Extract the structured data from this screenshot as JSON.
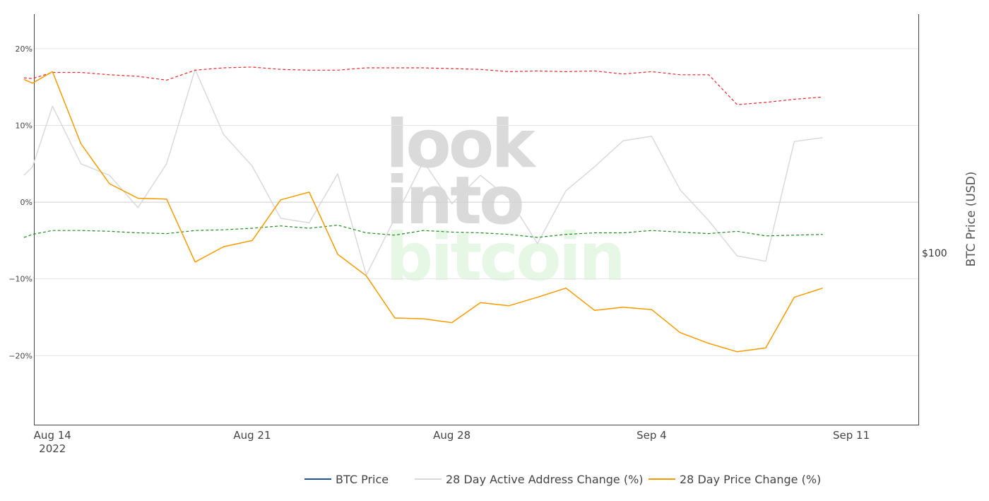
{
  "chart_data": {
    "type": "line",
    "watermark": [
      "look",
      "into",
      "bitcoin"
    ],
    "yaxis_right": {
      "title": "BTC Price (USD)",
      "tick_label": "$100"
    },
    "x_ticks": [
      {
        "label": "Aug 14",
        "sublabel": "2022",
        "day": 0
      },
      {
        "label": "Aug 21",
        "sublabel": "",
        "day": 7
      },
      {
        "label": "Aug 28",
        "sublabel": "",
        "day": 14
      },
      {
        "label": "Sep 4",
        "sublabel": "",
        "day": 21
      },
      {
        "label": "Sep 11",
        "sublabel": "",
        "day": 28
      }
    ],
    "x_range": [
      "2022-08-13",
      "2022-09-13"
    ],
    "ylim": [
      -29,
      24.5
    ],
    "y_ticks": [
      {
        "value": 20,
        "label": "20%"
      },
      {
        "value": 10,
        "label": "10%"
      },
      {
        "value": 0,
        "label": "0%"
      },
      {
        "value": -10,
        "label": "−10%"
      },
      {
        "value": -20,
        "label": "−20%"
      }
    ],
    "grid": true,
    "legend_position": "bottom-center",
    "legend": [
      {
        "name": "BTC Price",
        "color": "#1f4e9c"
      },
      {
        "name": "28 Day Active Address Change (%)",
        "color": "#d9d9d9"
      },
      {
        "name": "28 Day Price Change (%)",
        "color": "#f59b00"
      }
    ],
    "series": [
      {
        "name": "28 Day Active Address Change (%)",
        "color": "#d9d9d9",
        "dash": false,
        "x": [
          "2022-08-13",
          "2022-08-13",
          "2022-08-14",
          "2022-08-15",
          "2022-08-16",
          "2022-08-17",
          "2022-08-18",
          "2022-08-19",
          "2022-08-20",
          "2022-08-21",
          "2022-08-22",
          "2022-08-23",
          "2022-08-24",
          "2022-08-25",
          "2022-08-26",
          "2022-08-27",
          "2022-08-28",
          "2022-08-29",
          "2022-08-30",
          "2022-08-31",
          "2022-09-01",
          "2022-09-02",
          "2022-09-03",
          "2022-09-04",
          "2022-09-05",
          "2022-09-06",
          "2022-09-07",
          "2022-09-08",
          "2022-09-09",
          "2022-09-10"
        ],
        "values": [
          3.5,
          4.6,
          12.5,
          5.0,
          3.5,
          -0.7,
          5.0,
          17.3,
          8.8,
          4.7,
          -2.1,
          -2.7,
          3.7,
          -9.5,
          -2.1,
          5.3,
          -0.2,
          3.5,
          0.5,
          -5.4,
          1.5,
          4.6,
          8.0,
          8.6,
          1.6,
          -2.4,
          -7.0,
          -7.7,
          7.9,
          8.4
        ]
      },
      {
        "name": "upper band",
        "color": "#e8262a",
        "dash": true,
        "x": [
          "2022-08-13",
          "2022-08-13",
          "2022-08-14",
          "2022-08-15",
          "2022-08-16",
          "2022-08-17",
          "2022-08-18",
          "2022-08-19",
          "2022-08-20",
          "2022-08-21",
          "2022-08-22",
          "2022-08-23",
          "2022-08-24",
          "2022-08-25",
          "2022-08-26",
          "2022-08-27",
          "2022-08-28",
          "2022-08-29",
          "2022-08-30",
          "2022-08-31",
          "2022-09-01",
          "2022-09-02",
          "2022-09-03",
          "2022-09-04",
          "2022-09-05",
          "2022-09-06",
          "2022-09-07",
          "2022-09-08",
          "2022-09-09",
          "2022-09-10"
        ],
        "values": [
          16.2,
          16.1,
          16.9,
          16.9,
          16.6,
          16.4,
          15.9,
          17.2,
          17.5,
          17.6,
          17.3,
          17.2,
          17.2,
          17.5,
          17.5,
          17.5,
          17.4,
          17.3,
          17.0,
          17.1,
          17.0,
          17.1,
          16.7,
          17.0,
          16.6,
          16.6,
          12.7,
          13.0,
          13.4,
          13.7
        ]
      },
      {
        "name": "lower band",
        "color": "#1e8a1e",
        "dash": true,
        "x": [
          "2022-08-13",
          "2022-08-13",
          "2022-08-14",
          "2022-08-15",
          "2022-08-16",
          "2022-08-17",
          "2022-08-18",
          "2022-08-19",
          "2022-08-20",
          "2022-08-21",
          "2022-08-22",
          "2022-08-23",
          "2022-08-24",
          "2022-08-25",
          "2022-08-26",
          "2022-08-27",
          "2022-08-28",
          "2022-08-29",
          "2022-08-30",
          "2022-08-31",
          "2022-09-01",
          "2022-09-02",
          "2022-09-03",
          "2022-09-04",
          "2022-09-05",
          "2022-09-06",
          "2022-09-07",
          "2022-09-08",
          "2022-09-09",
          "2022-09-10"
        ],
        "values": [
          -4.6,
          -4.2,
          -3.7,
          -3.7,
          -3.8,
          -4.0,
          -4.1,
          -3.7,
          -3.6,
          -3.4,
          -3.1,
          -3.4,
          -3.0,
          -4.0,
          -4.3,
          -3.7,
          -3.9,
          -4.0,
          -4.2,
          -4.6,
          -4.2,
          -4.0,
          -4.0,
          -3.7,
          -3.9,
          -4.1,
          -3.8,
          -4.4,
          -4.3,
          -4.2
        ]
      },
      {
        "name": "28 Day Price Change (%)",
        "color": "#f59b00",
        "dash": false,
        "x": [
          "2022-08-13",
          "2022-08-13",
          "2022-08-14",
          "2022-08-15",
          "2022-08-16",
          "2022-08-17",
          "2022-08-18",
          "2022-08-19",
          "2022-08-20",
          "2022-08-21",
          "2022-08-22",
          "2022-08-23",
          "2022-08-24",
          "2022-08-25",
          "2022-08-26",
          "2022-08-27",
          "2022-08-28",
          "2022-08-29",
          "2022-08-30",
          "2022-08-31",
          "2022-09-01",
          "2022-09-02",
          "2022-09-03",
          "2022-09-04",
          "2022-09-05",
          "2022-09-06",
          "2022-09-07",
          "2022-09-08",
          "2022-09-09",
          "2022-09-10"
        ],
        "values": [
          16.0,
          15.5,
          17.0,
          7.6,
          2.4,
          0.5,
          0.4,
          -7.8,
          -5.8,
          -5.0,
          0.3,
          1.3,
          -6.8,
          -9.6,
          -15.1,
          -15.2,
          -15.7,
          -13.1,
          -13.5,
          -12.4,
          -11.2,
          -14.1,
          -13.7,
          -14.0,
          -17.0,
          -18.4,
          -19.5,
          -19.0,
          -12.4,
          -11.2
        ]
      }
    ]
  }
}
